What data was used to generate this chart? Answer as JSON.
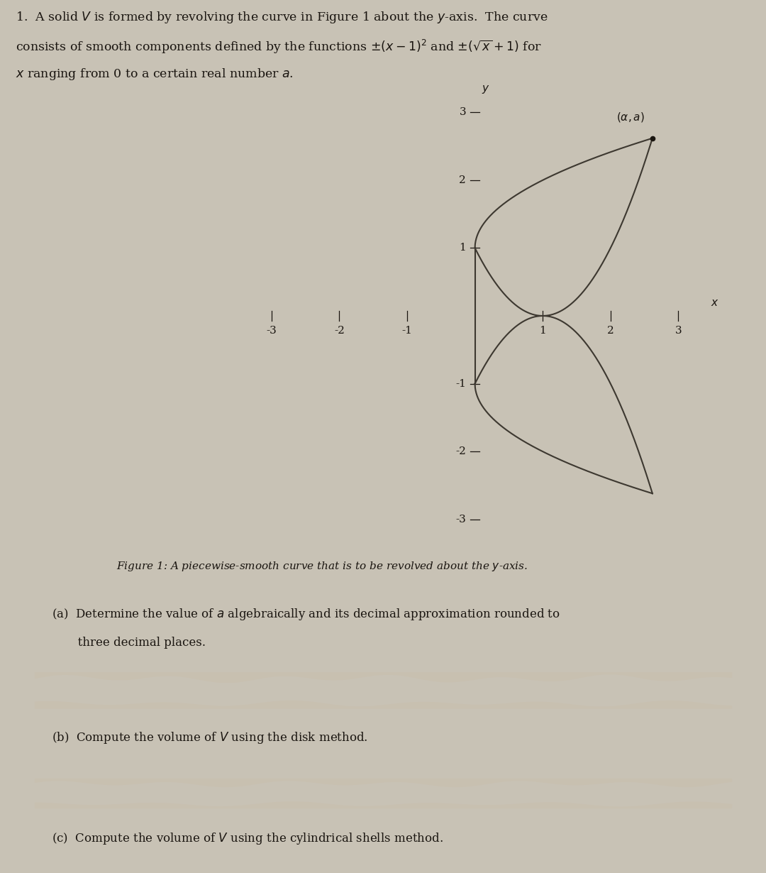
{
  "problem_text_line1": "1.  A solid $V$ is formed by revolving the curve in Figure 1 about the $y$-axis.  The curve",
  "problem_text_line2": "consists of smooth components defined by the functions $\\pm(x-1)^2$ and $\\pm(\\sqrt{x}+1)$ for",
  "problem_text_line3": "$x$ ranging from 0 to a certain real number $a$.",
  "figure_caption": "Figure 1: A piecewise-smooth curve that is to be revolved about the $y$-axis.",
  "part_a_line1": "(a)  Determine the value of $a$ algebraically and its decimal approximation rounded to",
  "part_a_line2": "       three decimal places.",
  "part_b": "(b)  Compute the volume of $V$ using the disk method.",
  "part_c": "(c)  Compute the volume of $V$ using the cylindrical shells method.",
  "xlim": [
    -3.4,
    3.4
  ],
  "ylim": [
    -3.4,
    3.4
  ],
  "xticks": [
    -3,
    -2,
    -1,
    1,
    2,
    3
  ],
  "yticks": [
    -3,
    -2,
    -1,
    1,
    2,
    3
  ],
  "curve_color": "#3d3830",
  "point_color": "#1a1510",
  "bg_color_main": "#c8c2b5",
  "bg_color_sep": "#b0a898",
  "bg_color_lower": "#c0b8a8",
  "text_color": "#1a1510",
  "axis_color": "#1a1510",
  "alpha_approx": 2.618,
  "line_width": 1.5,
  "font_size_problem": 12.5,
  "font_size_axis": 11,
  "font_size_caption": 11,
  "font_size_parts": 12
}
